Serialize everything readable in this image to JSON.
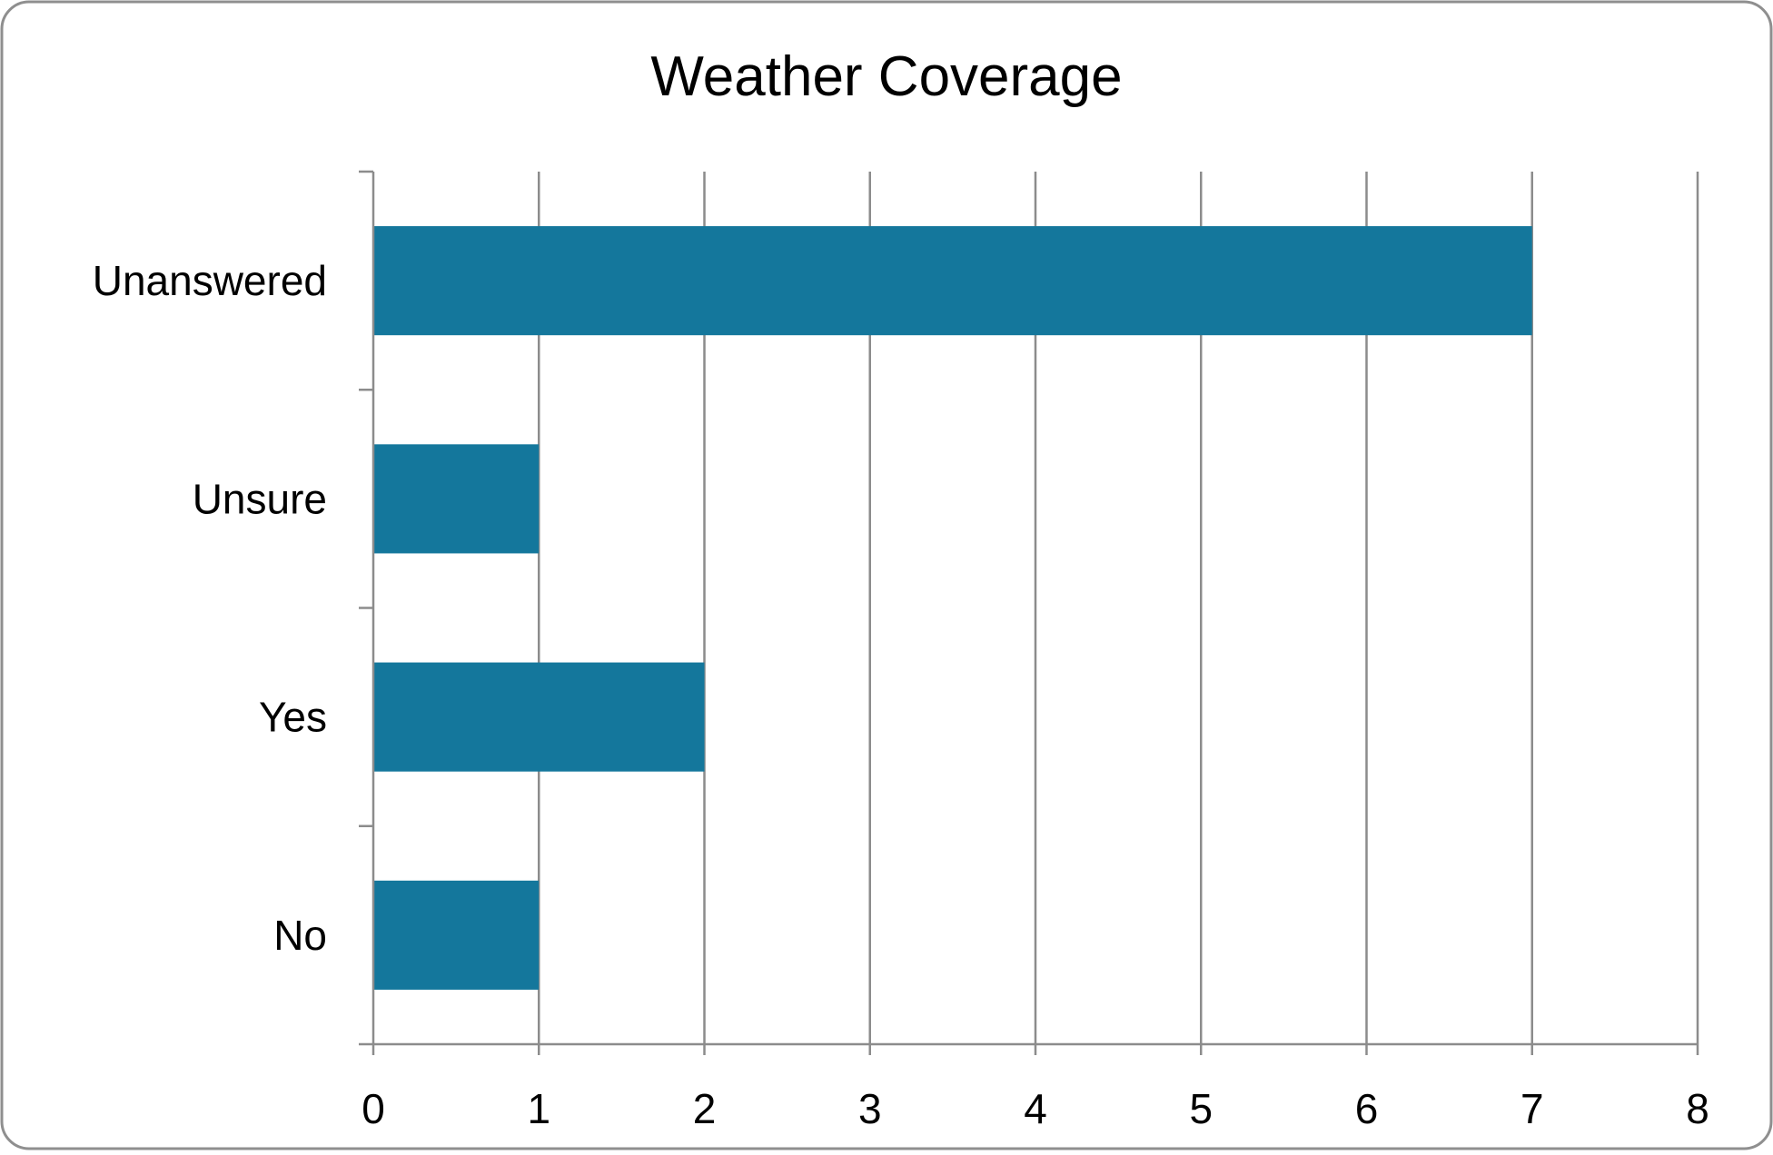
{
  "chart_data": {
    "type": "bar",
    "orientation": "horizontal",
    "title": "Weather Coverage",
    "categories": [
      "Unanswered",
      "Unsure",
      "Yes",
      "No"
    ],
    "values": [
      7,
      1,
      2,
      1
    ],
    "xlim": [
      0,
      8
    ],
    "x_ticks": [
      "0",
      "1",
      "2",
      "3",
      "4",
      "5",
      "6",
      "7",
      "8"
    ],
    "grid": "vertical",
    "legend": "none",
    "colors": {
      "bar": "#14779c",
      "grid": "#8c8c8c",
      "axis": "#8c8c8c",
      "frame": "#8f8f8f"
    }
  }
}
